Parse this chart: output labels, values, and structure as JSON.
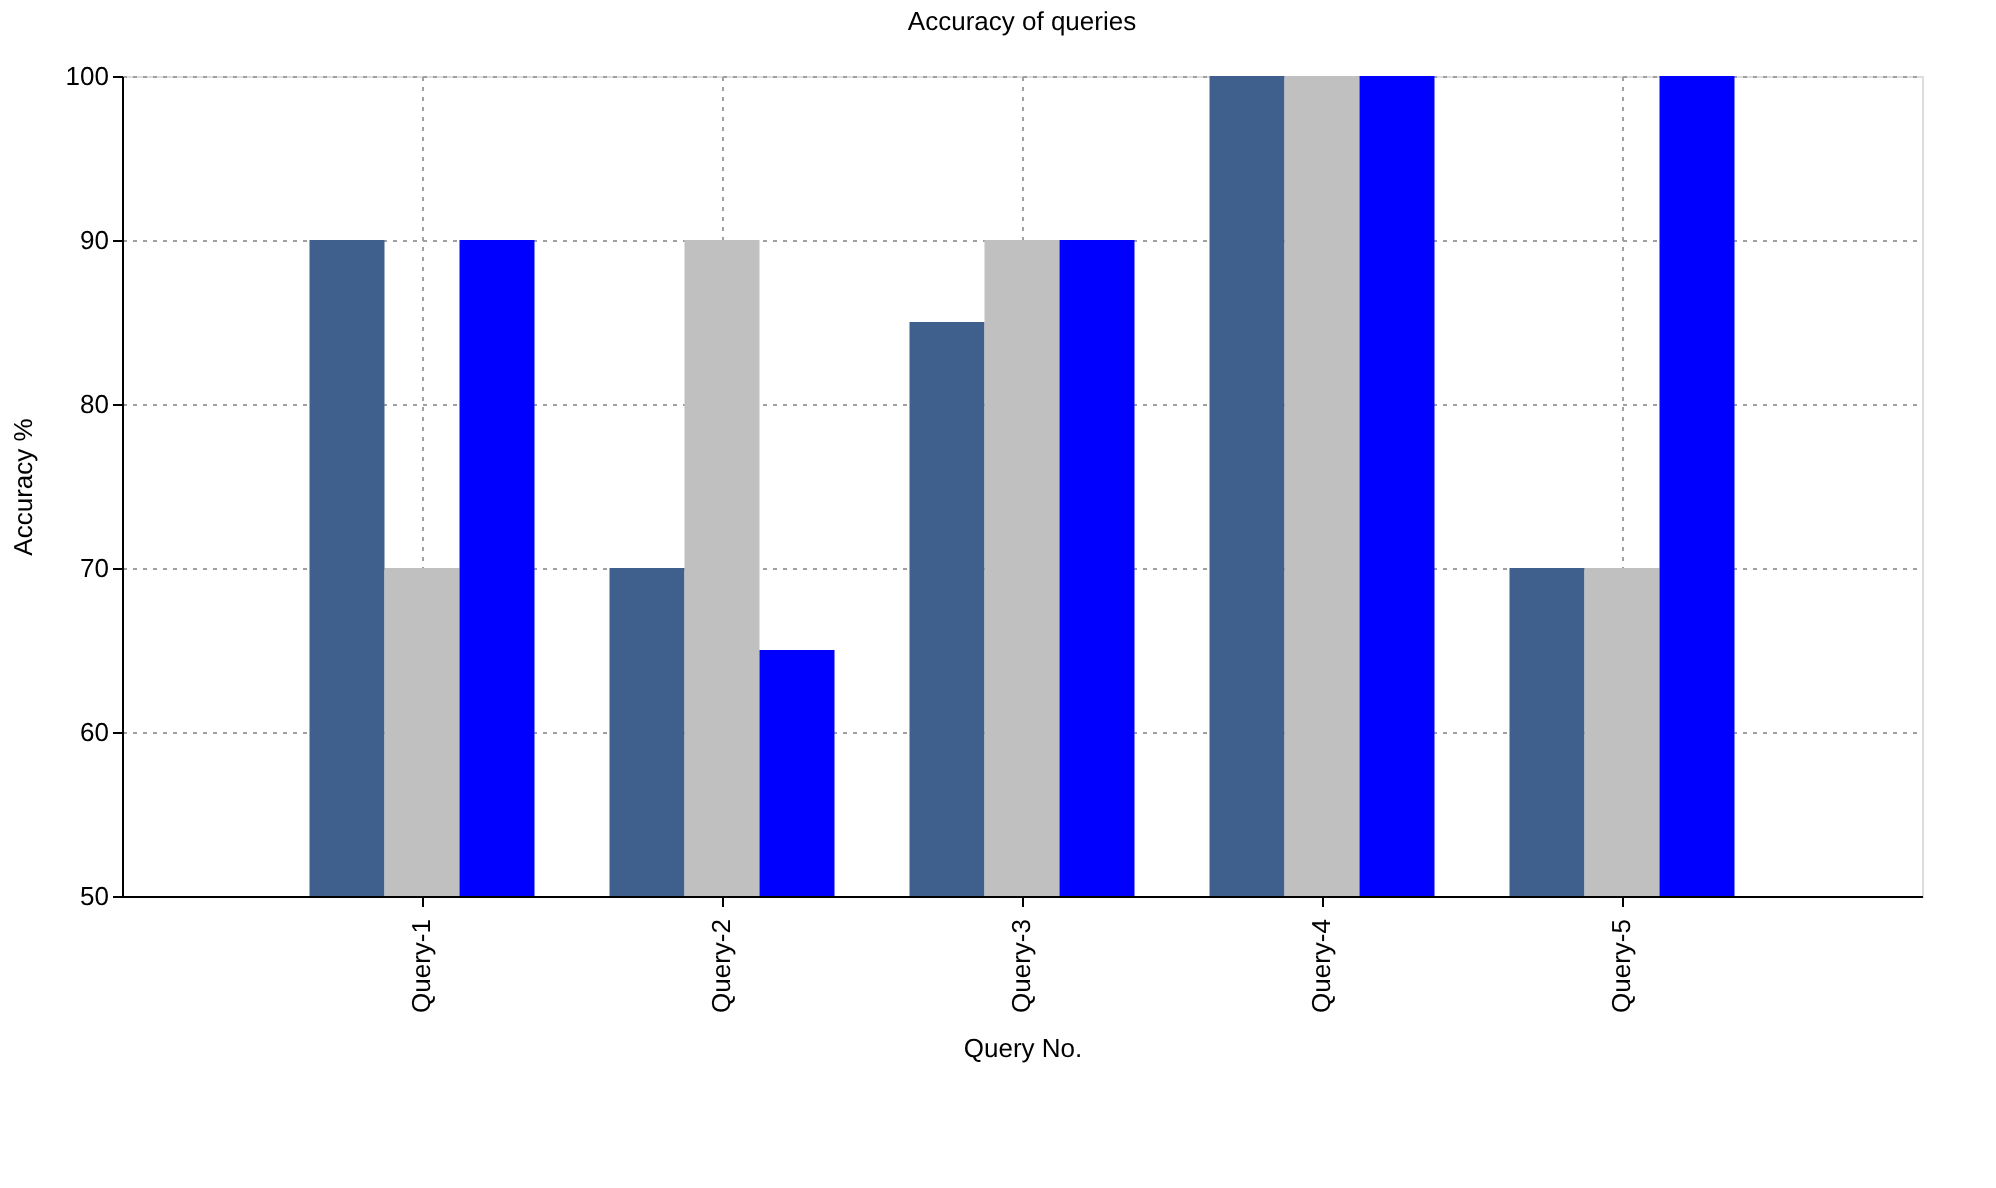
{
  "chart_data": {
    "type": "bar",
    "title": "Accuracy of queries",
    "xlabel": "Query No.",
    "ylabel": "Accuracy %",
    "categories": [
      "Query-1",
      "Query-2",
      "Query-3",
      "Query-4",
      "Query-5"
    ],
    "series": [
      {
        "color": "#3f5f8c",
        "values": [
          90,
          70,
          85,
          100,
          70
        ]
      },
      {
        "color": "#c0c0c0",
        "values": [
          70,
          90,
          90,
          100,
          70
        ]
      },
      {
        "color": "#0000ff",
        "values": [
          90,
          65,
          90,
          100,
          100
        ]
      }
    ],
    "ylim": [
      50,
      100
    ],
    "yticks": [
      50,
      60,
      70,
      80,
      90,
      100
    ],
    "grid": true,
    "legend": false
  }
}
